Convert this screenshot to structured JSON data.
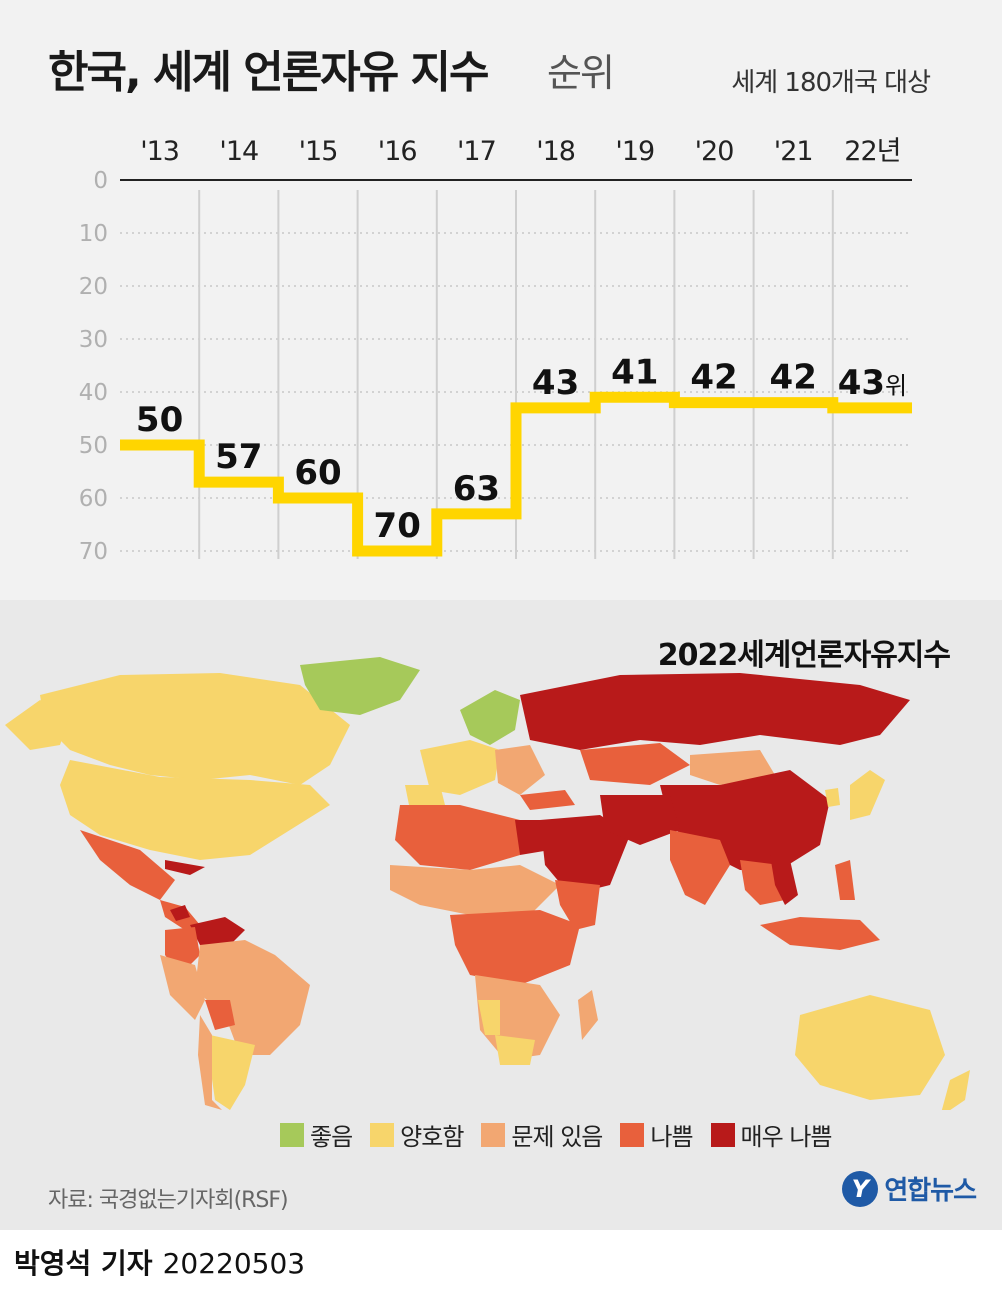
{
  "header": {
    "title": "한국, 세계 언론자유 지수",
    "title_suffix": "순위",
    "scope": "세계 180개국 대상"
  },
  "chart_data": {
    "type": "line",
    "step": true,
    "title": "한국, 세계 언론자유 지수 순위",
    "x": [
      "'13",
      "'14",
      "'15",
      "'16",
      "'17",
      "'18",
      "'19",
      "'20",
      "'21",
      "22년"
    ],
    "series": [
      {
        "values": [
          50,
          57,
          60,
          70,
          63,
          43,
          41,
          42,
          42,
          43
        ]
      }
    ],
    "last_label_suffix": "위",
    "y_ticks": [
      "0",
      "10",
      "20",
      "30",
      "40",
      "50",
      "60",
      "70"
    ],
    "ylim": [
      0,
      70
    ],
    "y_inverted": true,
    "line_color": "#ffd500",
    "grid": true
  },
  "map": {
    "title": "2022세계언론자유지수",
    "legend": [
      {
        "label": "좋음",
        "color": "#a6c95a"
      },
      {
        "label": "양호함",
        "color": "#f7d56b"
      },
      {
        "label": "문제 있음",
        "color": "#f2a772"
      },
      {
        "label": "나쁨",
        "color": "#e8603c"
      },
      {
        "label": "매우 나쁨",
        "color": "#b81a1a"
      }
    ]
  },
  "source": "자료: 국경없는기자회(RSF)",
  "logo": "연합뉴스",
  "byline": {
    "name": "박영석 기자",
    "date": "20220503"
  }
}
